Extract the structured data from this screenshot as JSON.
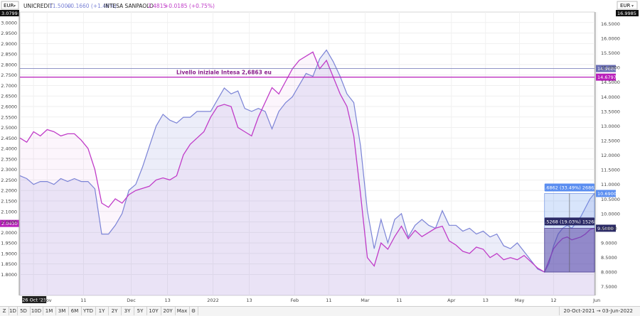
{
  "header": {
    "currency_left": "EUR",
    "currency_right": "EUR",
    "legend1": {
      "name": "UNICREDIT",
      "value": "11.5000",
      "change": "+0.1660 (+1.46%)",
      "color": "#7b83d6"
    },
    "legend2": {
      "name": "INTESA SANPAOLO",
      "value": "2.4815",
      "change": "+0.0185 (+0.75%)",
      "color": "#c03cc8"
    }
  },
  "toolbar": {
    "buttons": [
      "1D",
      "5D",
      "10D",
      "1M",
      "3M",
      "6M",
      "YTD",
      "1Y",
      "2Y",
      "3Y",
      "5Y",
      "10Y",
      "20Y",
      "Max"
    ],
    "range_label": "20-Oct-2021 → 03-Jun-2022"
  },
  "chart_data": {
    "type": "line",
    "title": "",
    "x": [
      0,
      3,
      6,
      9,
      12,
      15,
      18,
      21,
      24,
      27,
      30,
      33,
      36,
      39,
      42,
      45,
      48,
      51,
      54,
      57,
      60,
      63,
      66,
      69,
      72,
      75,
      78,
      81,
      84,
      87,
      90,
      93,
      96,
      99,
      102,
      105,
      108,
      111,
      114,
      117,
      120,
      123,
      126,
      129,
      132,
      135,
      138,
      141,
      144,
      147,
      150,
      153,
      156,
      159,
      162,
      165,
      168,
      171,
      174,
      177,
      180,
      183,
      186,
      189,
      192,
      195,
      198,
      201,
      204,
      207,
      210,
      213,
      216,
      219,
      222,
      225,
      228
    ],
    "x_ticks": [
      {
        "x": 6,
        "label": "26 Oct '21"
      },
      {
        "x": 12,
        "label": "Nov"
      },
      {
        "x": 28,
        "label": "11"
      },
      {
        "x": 49,
        "label": "Dec"
      },
      {
        "x": 65,
        "label": "13"
      },
      {
        "x": 85,
        "label": "2022"
      },
      {
        "x": 101,
        "label": "13"
      },
      {
        "x": 121,
        "label": "Feb"
      },
      {
        "x": 136,
        "label": "11"
      },
      {
        "x": 152,
        "label": "Mar"
      },
      {
        "x": 167,
        "label": "11"
      },
      {
        "x": 190,
        "label": "Apr"
      },
      {
        "x": 205,
        "label": "13"
      },
      {
        "x": 220,
        "label": "May"
      },
      {
        "x": 235,
        "label": "12"
      },
      {
        "x": 254,
        "label": "Jun"
      }
    ],
    "xlim": [
      0,
      253
    ],
    "series": [
      {
        "name": "UNICREDIT",
        "axis": "right",
        "color": "#7b83d6",
        "values": [
          11.3,
          11.2,
          11.0,
          11.1,
          11.1,
          11.0,
          11.2,
          11.1,
          11.2,
          11.1,
          11.1,
          10.85,
          9.3,
          9.3,
          9.6,
          10.0,
          10.8,
          11.0,
          11.6,
          12.3,
          13.0,
          13.4,
          13.2,
          13.1,
          13.3,
          13.3,
          13.5,
          13.5,
          13.5,
          13.9,
          14.3,
          14.1,
          14.2,
          13.6,
          13.5,
          13.6,
          13.5,
          12.9,
          13.5,
          13.8,
          14.0,
          14.4,
          14.8,
          14.7,
          15.3,
          15.6,
          15.2,
          14.7,
          14.1,
          13.8,
          12.3,
          10.1,
          8.8,
          9.8,
          9.0,
          9.8,
          10.0,
          9.2,
          9.6,
          9.8,
          9.6,
          9.5,
          10.1,
          9.6,
          9.6,
          9.4,
          9.5,
          9.3,
          9.4,
          9.2,
          9.3,
          8.9,
          8.8,
          9.0,
          8.7,
          8.4,
          8.1
        ]
      },
      {
        "name": "INTESA SANPAOLO",
        "axis": "left",
        "color": "#c03cc8",
        "values": [
          2.45,
          2.43,
          2.48,
          2.46,
          2.49,
          2.48,
          2.46,
          2.47,
          2.47,
          2.44,
          2.4,
          2.3,
          2.14,
          2.12,
          2.16,
          2.14,
          2.18,
          2.2,
          2.21,
          2.22,
          2.25,
          2.26,
          2.25,
          2.27,
          2.37,
          2.42,
          2.45,
          2.48,
          2.55,
          2.6,
          2.61,
          2.6,
          2.5,
          2.48,
          2.46,
          2.55,
          2.62,
          2.69,
          2.66,
          2.72,
          2.78,
          2.82,
          2.84,
          2.86,
          2.78,
          2.82,
          2.74,
          2.66,
          2.6,
          2.46,
          2.18,
          1.88,
          1.84,
          1.95,
          1.92,
          1.98,
          2.03,
          1.97,
          2.01,
          1.98,
          2.0,
          2.02,
          2.03,
          1.96,
          1.94,
          1.91,
          1.9,
          1.93,
          1.92,
          1.88,
          1.9,
          1.87,
          1.88,
          1.87,
          1.89,
          1.86,
          1.83
        ]
      }
    ],
    "y_left": {
      "min": 1.7,
      "max": 3.05,
      "ticks": [
        1.8,
        1.85,
        1.9,
        1.95,
        2.0,
        2.05,
        2.1,
        2.15,
        2.2,
        2.25,
        2.3,
        2.35,
        2.4,
        2.45,
        2.5,
        2.55,
        2.6,
        2.65,
        2.7,
        2.75,
        2.8,
        2.85,
        2.9,
        2.95,
        3.0
      ],
      "current_label": "3.0799",
      "current2_label": "2.0430",
      "current2_value": 2.043
    },
    "y_right": {
      "min": 7.2,
      "max": 16.9,
      "ticks": [
        7.5,
        8.0,
        8.5,
        9.0,
        9.5,
        10.0,
        10.5,
        11.0,
        11.5,
        12.0,
        12.5,
        13.0,
        13.5,
        14.0,
        14.5,
        15.0,
        15.5,
        16.0,
        16.5
      ],
      "current_label": "16.9985"
    },
    "annotation": {
      "label": "Livello iniziale Intesa 2,6863 eu",
      "value": 2.74,
      "axis": "left",
      "right_label": "14.6797"
    },
    "hline_top": {
      "value": 14.968,
      "axis": "right",
      "right_label": "14.9680"
    },
    "measure": {
      "x_start": 231,
      "x_end": 253,
      "blue": {
        "label": "2.6862 (33.49%) 26862",
        "right_label": "10.6900",
        "top": 10.69,
        "bottom": 8.0,
        "values": [
          8.0,
          8.3,
          8.9,
          9.3,
          9.5,
          9.6,
          9.5,
          9.7,
          9.9,
          10.2,
          10.5,
          10.69
        ]
      },
      "purple": {
        "label": "1.5268 (19.03%) 15268",
        "right_label": "9.5000",
        "top": 9.5,
        "bottom": 8.0,
        "values": [
          8.0,
          8.4,
          8.8,
          9.0,
          9.15,
          9.2,
          9.1,
          9.15,
          9.2,
          9.3,
          9.45,
          9.5
        ]
      }
    },
    "grid": true,
    "legend": "top-left"
  }
}
